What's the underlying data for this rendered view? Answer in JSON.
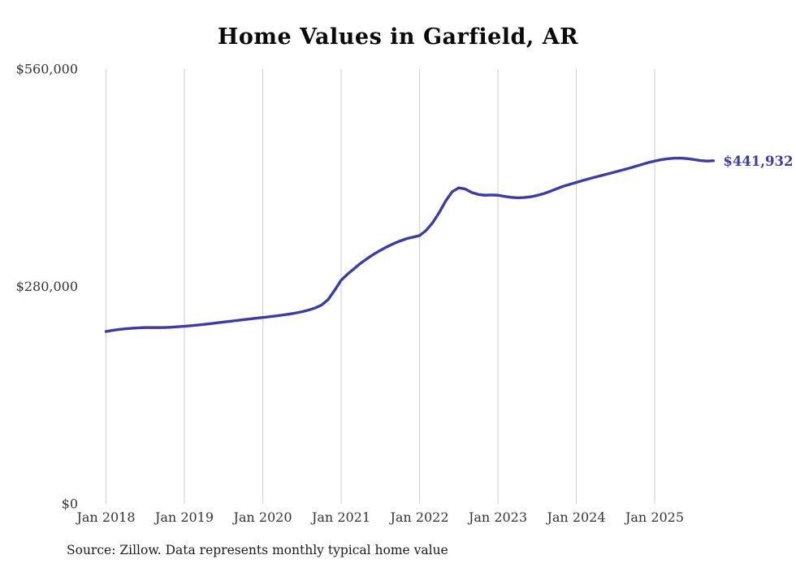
{
  "chart_data": {
    "type": "line",
    "title": "Home Values in Garfield, AR",
    "source_note": "Source: Zillow. Data represents monthly typical home value",
    "series_name": "Monthly typical home value",
    "line_color": "#3b3bab",
    "grid_color": "#cccccc",
    "label_color": "#333333",
    "end_label": "$441,932",
    "end_value": 441932,
    "x_start": "2018-01",
    "x_end": "2025-10",
    "x_tick_labels": [
      "Jan 2018",
      "Jan 2019",
      "Jan 2020",
      "Jan 2021",
      "Jan 2022",
      "Jan 2023",
      "Jan 2024",
      "Jan 2025"
    ],
    "y_ticks": [
      {
        "value": 0,
        "label": "$0"
      },
      {
        "value": 280000,
        "label": "$280,000"
      },
      {
        "value": 560000,
        "label": "$560,000"
      }
    ],
    "ylim": [
      0,
      560000
    ],
    "grid": "vertical-only",
    "legend": "none",
    "values": [
      222000,
      223400,
      224600,
      225500,
      226200,
      226700,
      227000,
      227100,
      227000,
      227100,
      227500,
      228100,
      228700,
      229400,
      230200,
      231100,
      232100,
      233100,
      234100,
      235100,
      236100,
      237100,
      238100,
      239100,
      240000,
      241000,
      242000,
      243100,
      244300,
      245700,
      247400,
      249500,
      252200,
      256000,
      263000,
      275000,
      288000,
      296000,
      303000,
      310000,
      316000,
      321500,
      326500,
      331000,
      335000,
      338500,
      341500,
      343500,
      345500,
      352000,
      362000,
      375000,
      390000,
      402000,
      407000,
      405500,
      401000,
      398500,
      397500,
      397800,
      397500,
      396000,
      394800,
      394200,
      394500,
      395500,
      397200,
      399500,
      402500,
      405800,
      409000,
      411500,
      414000,
      416500,
      418800,
      421000,
      423200,
      425400,
      427600,
      429800,
      432000,
      434500,
      437000,
      439500,
      441500,
      443200,
      444500,
      445200,
      445300,
      444700,
      443500,
      442200,
      441500,
      441932
    ]
  }
}
